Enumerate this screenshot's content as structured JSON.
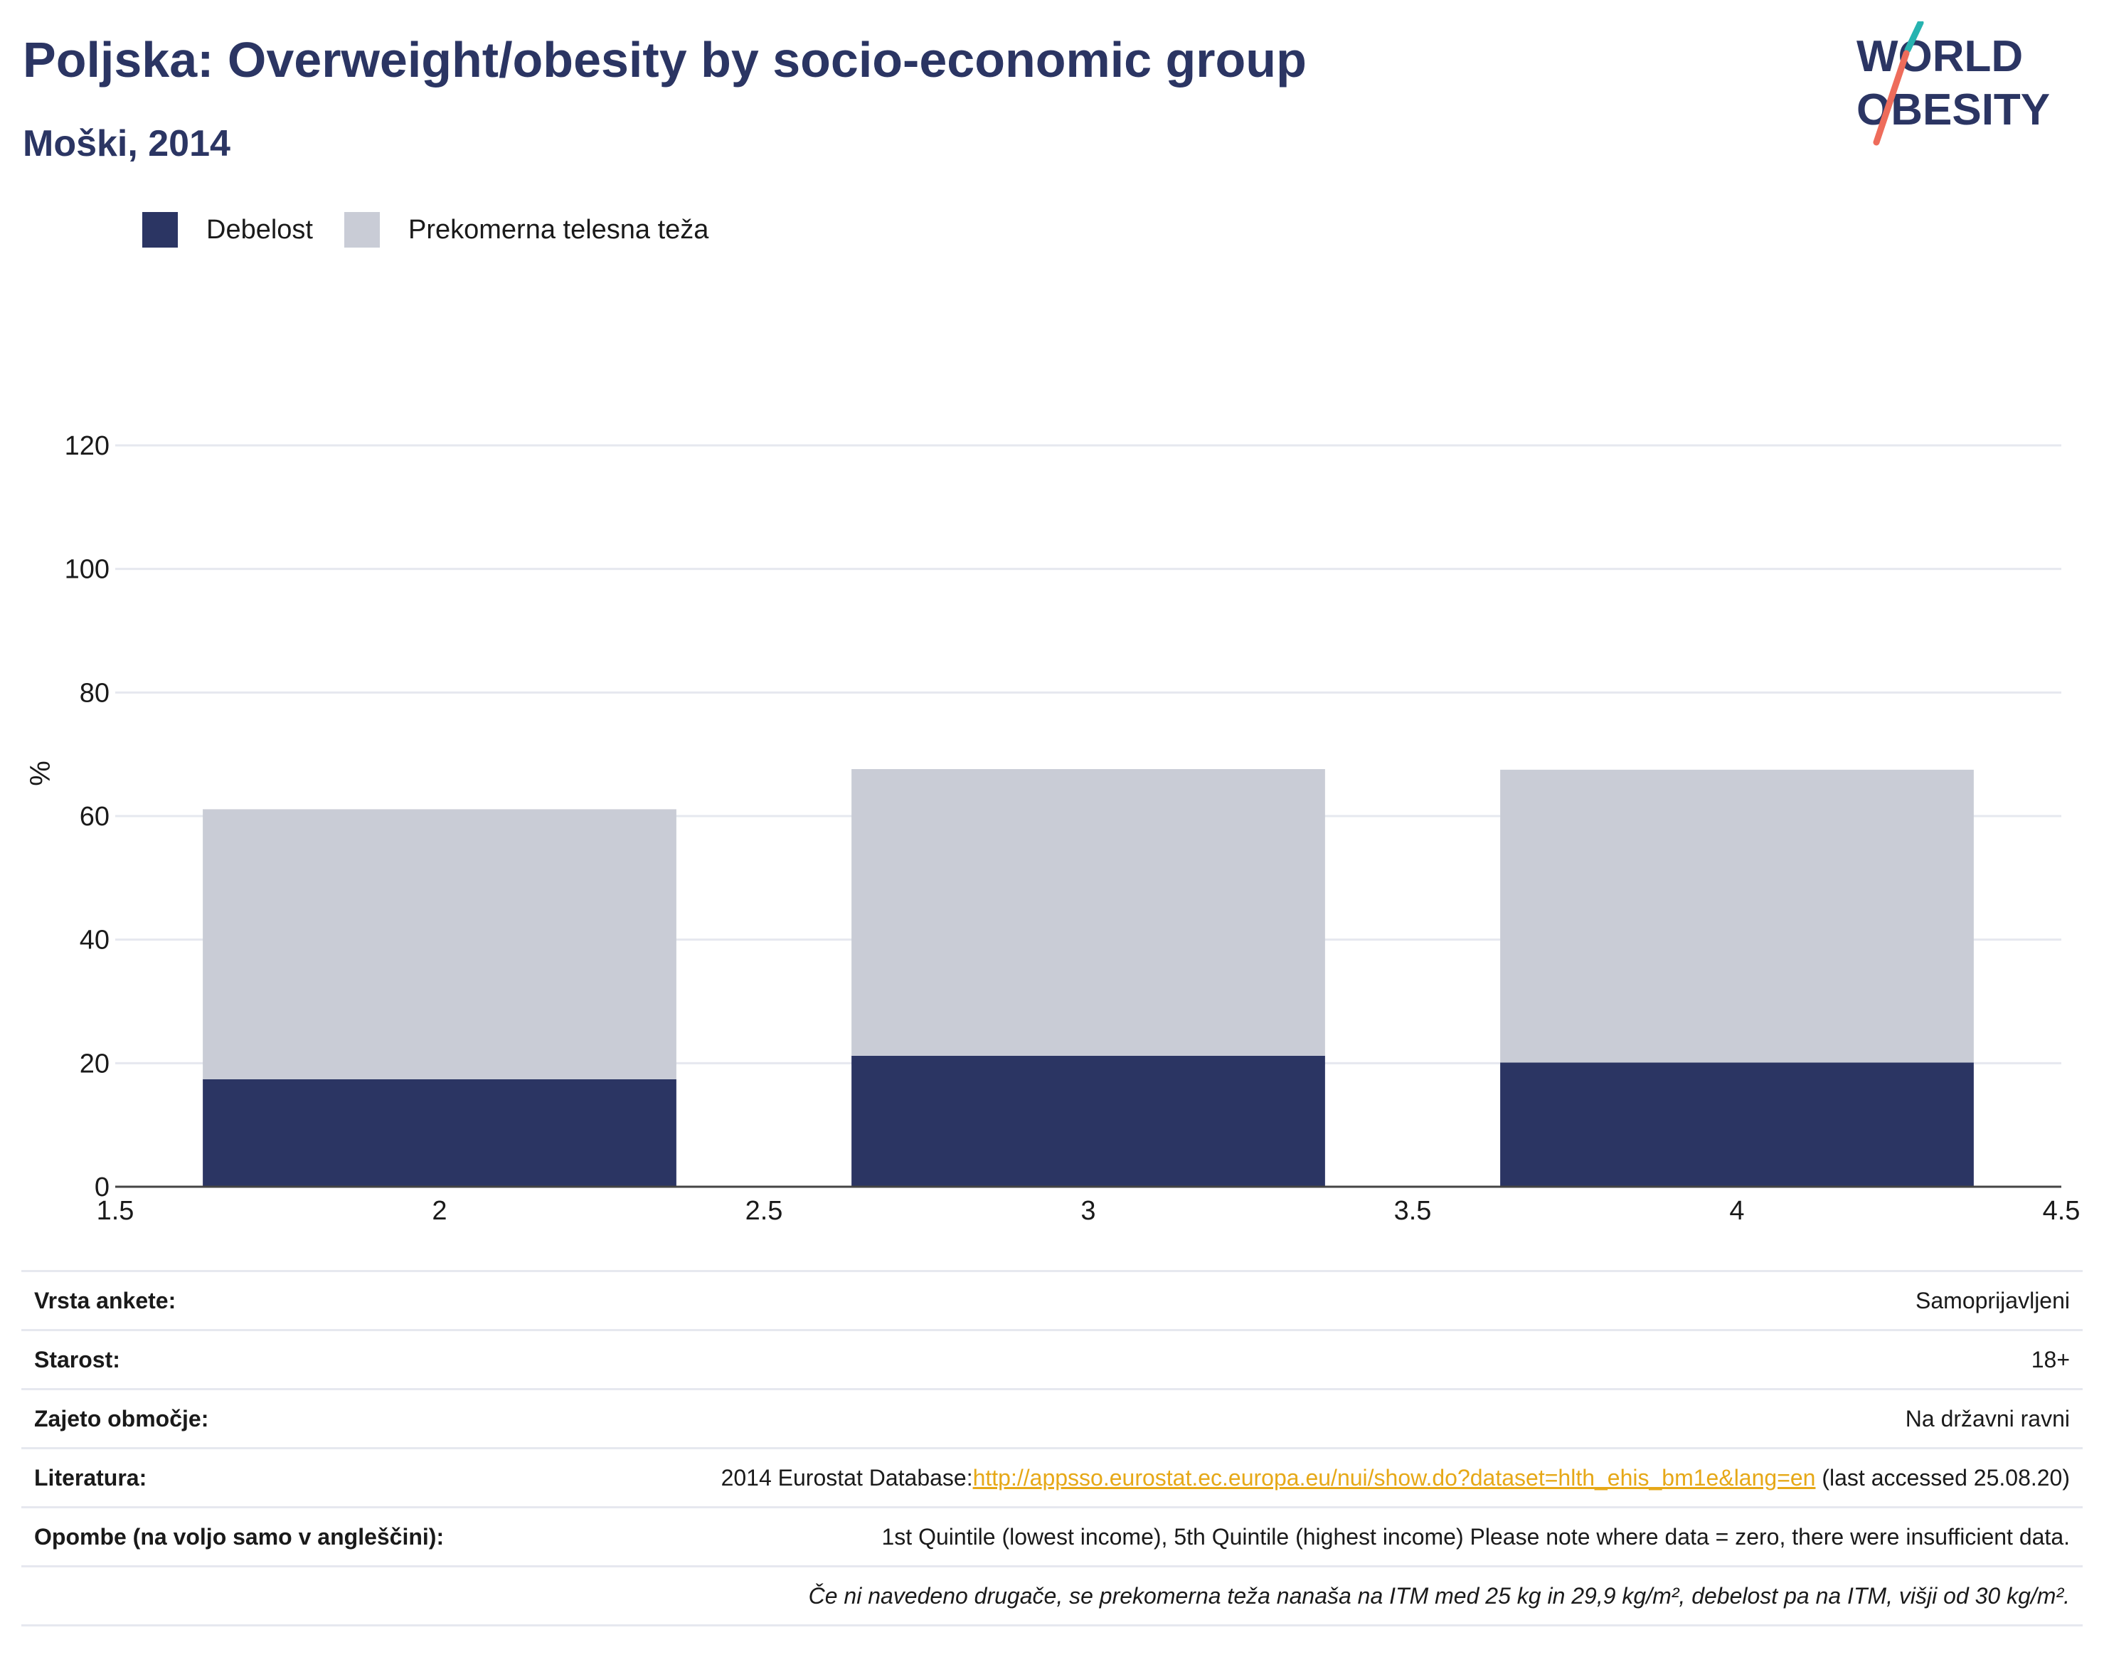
{
  "header": {
    "title": "Poljska: Overweight/obesity by socio-economic group",
    "subtitle": "Moški, 2014"
  },
  "logo": {
    "line1": "WORLD",
    "line2": "OBESITY",
    "colors": {
      "text": "#2b3563",
      "slash_top": "#27b3b0",
      "slash_bottom": "#ee6c5b"
    }
  },
  "legend": {
    "items": [
      {
        "label": "Debelost",
        "color": "#2b3563"
      },
      {
        "label": "Prekomerna telesna teža",
        "color": "#c9ccd6"
      }
    ]
  },
  "chart_data": {
    "type": "bar",
    "stacked": true,
    "x": [
      2,
      3,
      4
    ],
    "series": [
      {
        "name": "Debelost",
        "color": "#2b3563",
        "values": [
          17.4,
          21.2,
          20.1
        ]
      },
      {
        "name": "Prekomerna telesna teža",
        "color": "#c9ccd6",
        "values": [
          43.7,
          46.4,
          47.4
        ]
      }
    ],
    "ylabel": "%",
    "xlim": [
      1.5,
      4.5
    ],
    "ylim": [
      0,
      120
    ],
    "xticks": [
      "1.5",
      "2",
      "2.5",
      "3",
      "3.5",
      "4",
      "4.5"
    ],
    "yticks": [
      "0",
      "20",
      "40",
      "60",
      "80",
      "100",
      "120"
    ],
    "grid": true,
    "legend_position": "top-left"
  },
  "info": {
    "rows": [
      {
        "key": "Vrsta ankete:",
        "value": "Samoprijavljeni"
      },
      {
        "key": "Starost:",
        "value": "18+"
      },
      {
        "key": "Zajeto območje:",
        "value": "Na državni ravni"
      },
      {
        "key": "Literatura:",
        "value_prefix": "2014 Eurostat Database:",
        "link": "http://appsso.eurostat.ec.europa.eu/nui/show.do?dataset=hlth_ehis_bm1e&lang=en",
        "value_suffix": " (last accessed 25.08.20)"
      },
      {
        "key": "Opombe (na voljo samo v angleščini):",
        "value": "1st Quintile (lowest income), 5th Quintile (highest income) Please note where data = zero, there were insufficient data."
      }
    ],
    "footnote": "Če ni navedeno drugače, se prekomerna teža nanaša na ITM med 25 kg in 29,9 kg/m², debelost pa na ITM, višji od 30 kg/m²."
  }
}
